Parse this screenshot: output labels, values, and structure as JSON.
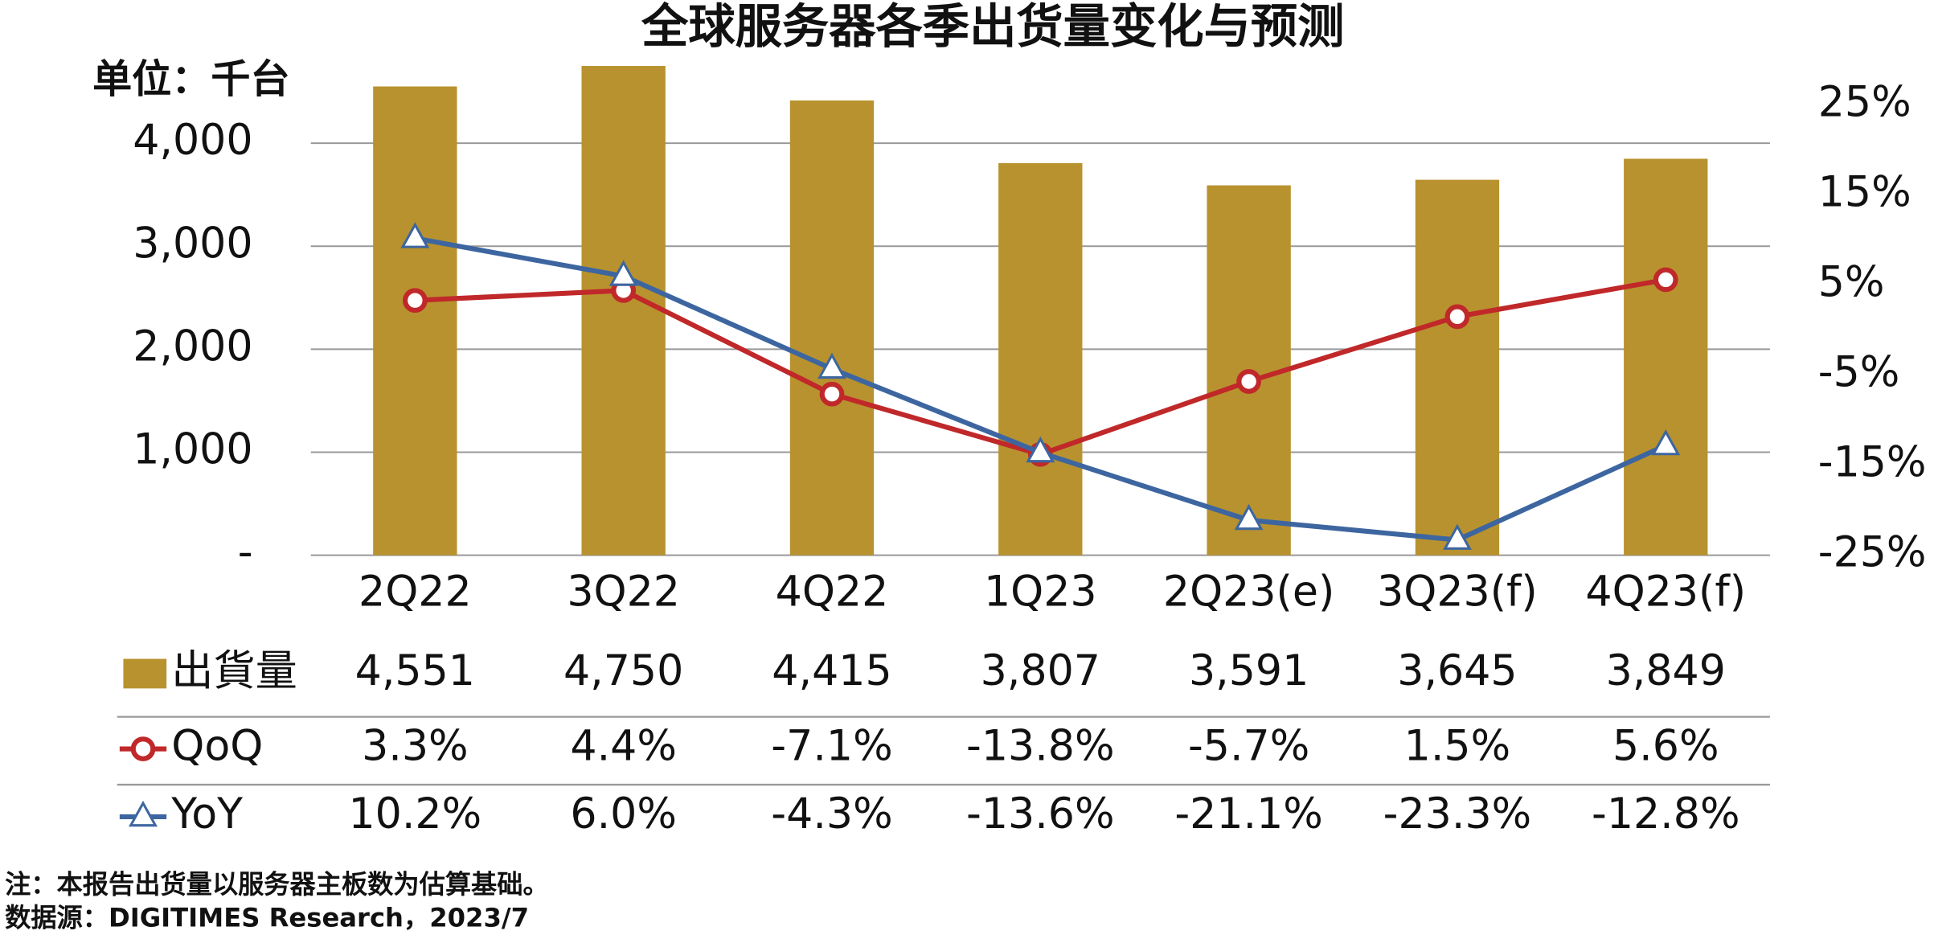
{
  "chart_data": {
    "type": "bar",
    "title": "全球服务器各季出货量变化与预测",
    "unit_label": "单位：千台",
    "categories": [
      "2Q22",
      "3Q22",
      "4Q22",
      "1Q23",
      "2Q23(e)",
      "3Q23(f)",
      "4Q23(f)"
    ],
    "series": [
      {
        "name": "出貨量",
        "color": "#b8922e",
        "values": [
          4551,
          4750,
          4415,
          3807,
          3591,
          3645,
          3849
        ],
        "value_labels": [
          "4,551",
          "4,750",
          "4,415",
          "3,807",
          "3,591",
          "3,645",
          "3,849"
        ]
      },
      {
        "name": "QoQ",
        "color": "#c0282a",
        "axis": "y2",
        "values": [
          3.3,
          4.4,
          -7.1,
          -13.8,
          -5.7,
          1.5,
          5.6
        ],
        "value_labels": [
          "3.3%",
          "4.4%",
          "-7.1%",
          "-13.8%",
          "-5.7%",
          "1.5%",
          "5.6%"
        ]
      },
      {
        "name": "YoY",
        "color": "#3d66a0",
        "axis": "y2",
        "values": [
          10.2,
          6.0,
          -4.3,
          -13.6,
          -21.1,
          -23.3,
          -12.8
        ],
        "value_labels": [
          "10.2%",
          "6.0%",
          "-4.3%",
          "-13.6%",
          "-21.1%",
          "-23.3%",
          "-12.8%"
        ]
      }
    ],
    "ylim": [
      0,
      5000
    ],
    "yticks": [
      {
        "value": 0,
        "label": "-"
      },
      {
        "value": 1000,
        "label": "1,000"
      },
      {
        "value": 2000,
        "label": "2,000"
      },
      {
        "value": 3000,
        "label": "3,000"
      },
      {
        "value": 4000,
        "label": "4,000"
      }
    ],
    "y2lim": [
      -25,
      32.2
    ],
    "y2ticks": [
      {
        "value": -25,
        "label": "-25%"
      },
      {
        "value": -15,
        "label": "-15%"
      },
      {
        "value": -5,
        "label": "-5%"
      },
      {
        "value": 5,
        "label": "5%"
      },
      {
        "value": 15,
        "label": "15%"
      },
      {
        "value": 25,
        "label": "25%"
      }
    ],
    "grid": true,
    "notes": [
      "注：本报告出货量以服务器主板数为估算基础。",
      "数据源：DIGITIMES Research，2023/7"
    ]
  }
}
